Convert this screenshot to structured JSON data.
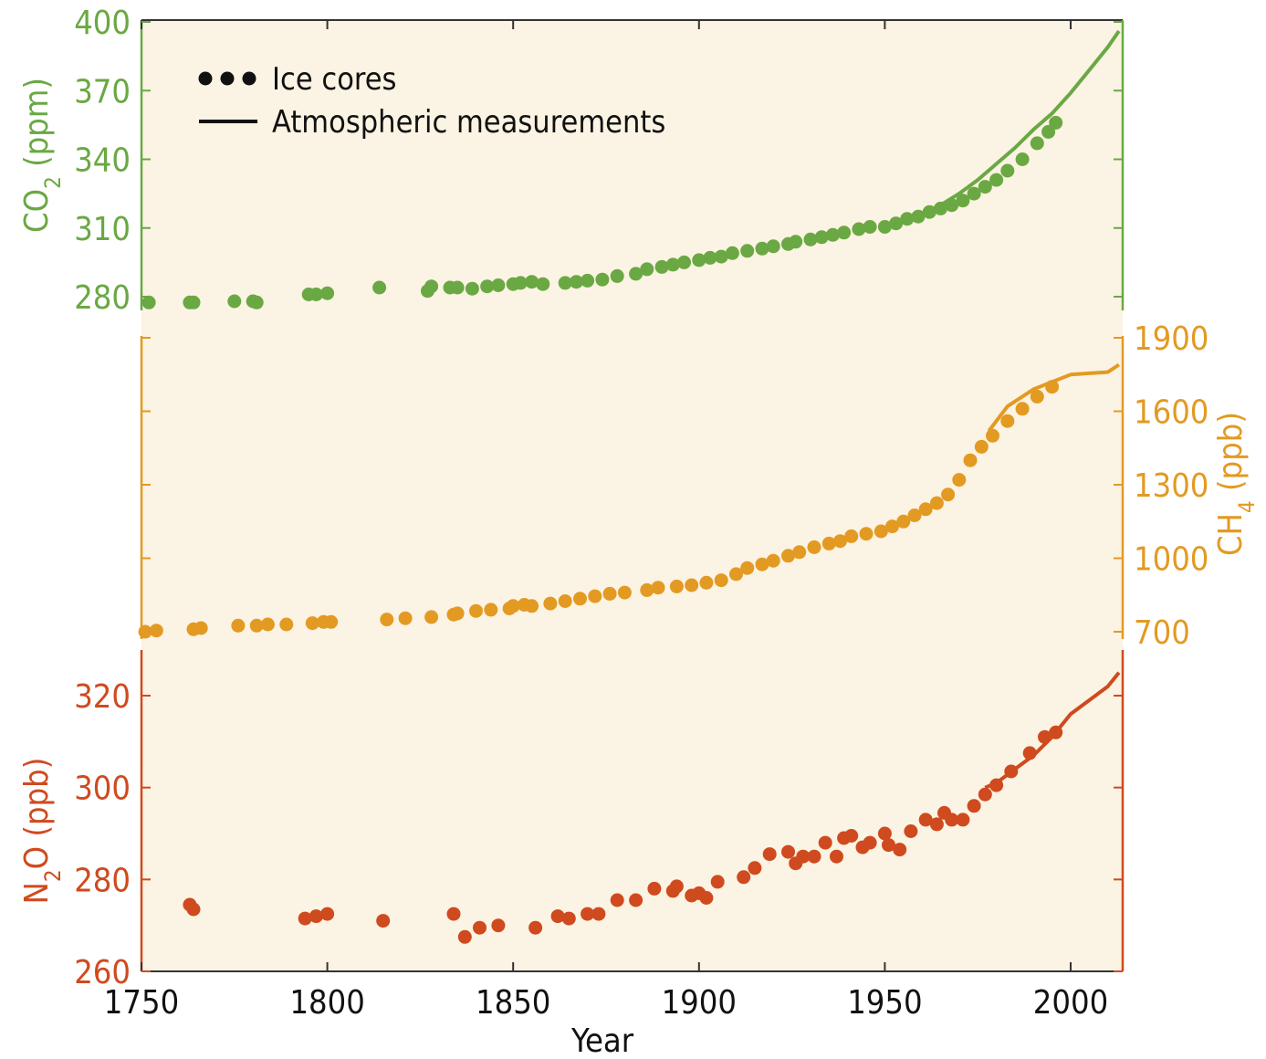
{
  "colors": {
    "co2": "#6aa843",
    "ch4": "#e39a22",
    "n2o": "#cf4a1f",
    "background": "#fbf3e3",
    "axis": "#333333"
  },
  "legend": {
    "ice_cores_label": "Ice cores",
    "atmospheric_label": "Atmospheric measurements"
  },
  "chart_data": {
    "type": "scatter",
    "xlabel": "Year",
    "xlim": [
      1750,
      2014
    ],
    "xticks": [
      1750,
      1800,
      1850,
      1900,
      1950,
      2000
    ],
    "grid": false,
    "legend_position": "top-left",
    "series": [
      {
        "name": "CO2",
        "ylabel": "CO2 (ppm)",
        "axis": "left",
        "ylim": [
          276,
          400
        ],
        "yticks": [
          280,
          310,
          340,
          370,
          400
        ],
        "ice_cores": {
          "x": [
            1752,
            1763,
            1764,
            1775,
            1780,
            1781,
            1795,
            1797,
            1800,
            1814,
            1827,
            1828,
            1833,
            1835,
            1839,
            1843,
            1846,
            1850,
            1852,
            1855,
            1858,
            1864,
            1867,
            1870,
            1874,
            1878,
            1883,
            1886,
            1890,
            1893,
            1896,
            1900,
            1903,
            1906,
            1909,
            1913,
            1917,
            1920,
            1924,
            1926,
            1930,
            1933,
            1936,
            1939,
            1943,
            1946,
            1950,
            1953,
            1956,
            1959,
            1962,
            1965,
            1968,
            1971,
            1974,
            1977,
            1980,
            1983,
            1987,
            1991,
            1994,
            1996
          ],
          "y": [
            277.5,
            277.5,
            277.5,
            278,
            278,
            277.5,
            281,
            281,
            281.5,
            284,
            282.5,
            284.5,
            284,
            284,
            283.5,
            284.5,
            285,
            285.5,
            286,
            286.5,
            285.5,
            286,
            286.5,
            287,
            287.5,
            289,
            290,
            292,
            293,
            294,
            295,
            296,
            297,
            297.5,
            299,
            300,
            301,
            302,
            303,
            304,
            305,
            306,
            307,
            308,
            309.5,
            310.5,
            310.5,
            312,
            314,
            315,
            317,
            318.5,
            320,
            322,
            325,
            328,
            331,
            335,
            340,
            347,
            352,
            356
          ]
        },
        "atmospheric": {
          "x": [
            1958,
            1965,
            1970,
            1975,
            1980,
            1985,
            1990,
            1995,
            2000,
            2005,
            2010,
            2013
          ],
          "y": [
            315,
            320,
            325,
            331,
            338,
            345,
            353,
            360,
            369,
            379,
            389,
            396
          ]
        }
      },
      {
        "name": "CH4",
        "ylabel": "CH4 (ppb)",
        "axis": "right",
        "ylim": [
          700,
          1900
        ],
        "yticks": [
          700,
          1000,
          1300,
          1600,
          1900
        ],
        "ice_cores": {
          "x": [
            1751,
            1754,
            1764,
            1766,
            1776,
            1781,
            1784,
            1789,
            1796,
            1799,
            1801,
            1816,
            1821,
            1828,
            1834,
            1835,
            1840,
            1844,
            1849,
            1850,
            1853,
            1855,
            1860,
            1864,
            1868,
            1872,
            1876,
            1880,
            1886,
            1889,
            1894,
            1898,
            1902,
            1906,
            1910,
            1913,
            1917,
            1920,
            1924,
            1927,
            1931,
            1935,
            1938,
            1941,
            1945,
            1949,
            1952,
            1955,
            1958,
            1961,
            1964,
            1967,
            1970,
            1973,
            1976,
            1979,
            1983,
            1987,
            1991,
            1995
          ],
          "y": [
            700,
            705,
            710,
            715,
            725,
            725,
            730,
            730,
            735,
            740,
            740,
            750,
            755,
            760,
            770,
            775,
            785,
            790,
            795,
            805,
            810,
            805,
            815,
            825,
            835,
            845,
            855,
            860,
            870,
            880,
            885,
            890,
            900,
            910,
            935,
            960,
            975,
            990,
            1010,
            1025,
            1045,
            1060,
            1070,
            1090,
            1100,
            1110,
            1130,
            1150,
            1175,
            1200,
            1225,
            1260,
            1320,
            1400,
            1455,
            1500,
            1560,
            1610,
            1660,
            1700
          ]
        },
        "atmospheric": {
          "x": [
            1978,
            1983,
            1987,
            1990,
            1995,
            2000,
            2005,
            2010,
            2013
          ],
          "y": [
            1520,
            1620,
            1660,
            1690,
            1720,
            1750,
            1755,
            1760,
            1790
          ]
        }
      },
      {
        "name": "N2O",
        "ylabel": "N2O (ppb)",
        "axis": "left",
        "ylim": [
          260,
          330
        ],
        "yticks": [
          260,
          280,
          300,
          320
        ],
        "ice_cores": {
          "x": [
            1763,
            1764,
            1794,
            1797,
            1800,
            1815,
            1834,
            1837,
            1841,
            1846,
            1856,
            1862,
            1865,
            1870,
            1873,
            1878,
            1883,
            1888,
            1893,
            1894,
            1898,
            1900,
            1902,
            1905,
            1912,
            1915,
            1919,
            1924,
            1926,
            1928,
            1931,
            1934,
            1937,
            1939,
            1941,
            1944,
            1946,
            1950,
            1951,
            1954,
            1957,
            1961,
            1964,
            1966,
            1968,
            1971,
            1974,
            1977,
            1980,
            1984,
            1989,
            1993,
            1996
          ],
          "y": [
            274.5,
            273.5,
            271.5,
            272,
            272.5,
            271,
            272.5,
            267.5,
            269.5,
            270,
            269.5,
            272,
            271.5,
            272.5,
            272.5,
            275.5,
            275.5,
            278,
            277.5,
            278.5,
            276.5,
            277,
            276,
            279.5,
            280.5,
            282.5,
            285.5,
            286,
            283.5,
            285,
            285,
            288,
            285,
            289,
            289.5,
            287,
            288,
            290,
            287.5,
            286.5,
            290.5,
            293,
            292,
            294.5,
            293,
            293,
            296,
            298.5,
            300.5,
            303.5,
            307.5,
            311,
            312
          ]
        },
        "atmospheric": {
          "x": [
            1977,
            1980,
            1985,
            1990,
            1995,
            2000,
            2005,
            2010,
            2013
          ],
          "y": [
            300,
            301,
            304,
            307,
            311,
            316,
            319,
            322,
            325
          ]
        }
      }
    ]
  }
}
